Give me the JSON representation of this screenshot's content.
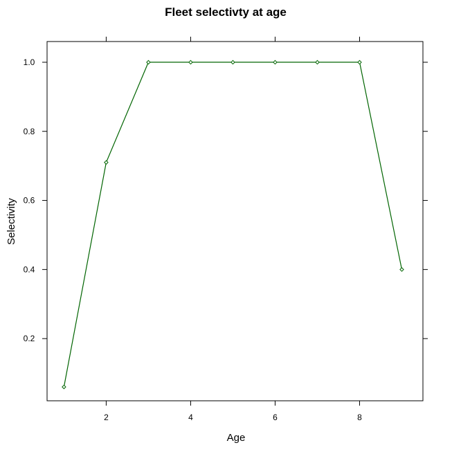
{
  "chart_data": {
    "type": "line",
    "title": "Fleet selectivty at age",
    "xlabel": "Age",
    "ylabel": "Selectivity",
    "x": [
      1,
      2,
      3,
      4,
      5,
      6,
      7,
      8,
      9
    ],
    "series": [
      {
        "values": [
          0.06,
          0.71,
          1.0,
          1.0,
          1.0,
          1.0,
          1.0,
          1.0,
          0.4
        ],
        "color": "#006400",
        "marker": "diamond"
      }
    ],
    "xticks": [
      2,
      4,
      6,
      8
    ],
    "xtick_labels": [
      "2",
      "4",
      "6",
      "8"
    ],
    "yticks": [
      0.2,
      0.4,
      0.6,
      0.8,
      1.0
    ],
    "ytick_labels": [
      "0.2",
      "0.4",
      "0.6",
      "0.8",
      "1.0"
    ],
    "xlim": [
      0.6,
      9.5
    ],
    "ylim": [
      0.02,
      1.06
    ],
    "grid": false,
    "legend": "none",
    "colors": {
      "series": "#006400",
      "frame": "#000000",
      "background": "#ffffff"
    }
  }
}
